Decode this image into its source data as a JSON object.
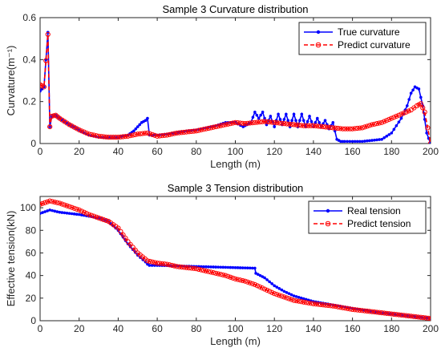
{
  "chart_data": [
    {
      "type": "line",
      "title": "Sample 3 Curvature distribution",
      "xlabel": "Length (m)",
      "ylabel": "Curvature(m⁻¹)",
      "xlim": [
        0,
        200
      ],
      "ylim": [
        0,
        0.6
      ],
      "xticks": [
        "0",
        "20",
        "40",
        "60",
        "80",
        "100",
        "120",
        "140",
        "160",
        "180",
        "200"
      ],
      "yticks": [
        "0",
        "0.2",
        "0.4",
        "0.6"
      ],
      "legend_position": "top-right",
      "grid": false,
      "series": [
        {
          "name": "True curvature",
          "color": "#0000ff",
          "style": "solid-dot",
          "x": [
            0,
            2,
            4,
            5,
            6,
            8,
            10,
            15,
            20,
            25,
            30,
            35,
            40,
            45,
            48,
            50,
            52,
            54,
            55,
            56,
            60,
            65,
            70,
            75,
            80,
            85,
            90,
            95,
            100,
            104,
            106,
            108,
            110,
            112,
            114,
            116,
            118,
            120,
            122,
            124,
            126,
            128,
            130,
            132,
            134,
            136,
            138,
            140,
            142,
            144,
            146,
            148,
            150,
            152,
            154,
            156,
            160,
            165,
            170,
            175,
            180,
            185,
            188,
            190,
            192,
            194,
            196,
            198,
            200
          ],
          "y": [
            0.25,
            0.27,
            0.53,
            0.08,
            0.13,
            0.135,
            0.12,
            0.09,
            0.065,
            0.04,
            0.03,
            0.03,
            0.03,
            0.04,
            0.06,
            0.08,
            0.1,
            0.11,
            0.12,
            0.04,
            0.04,
            0.045,
            0.05,
            0.06,
            0.065,
            0.075,
            0.085,
            0.1,
            0.1,
            0.08,
            0.09,
            0.1,
            0.15,
            0.12,
            0.15,
            0.09,
            0.13,
            0.08,
            0.14,
            0.09,
            0.14,
            0.08,
            0.14,
            0.08,
            0.14,
            0.08,
            0.13,
            0.08,
            0.12,
            0.08,
            0.11,
            0.07,
            0.1,
            0.02,
            0.01,
            0.01,
            0.01,
            0.01,
            0.015,
            0.02,
            0.05,
            0.12,
            0.18,
            0.24,
            0.27,
            0.26,
            0.18,
            0.05,
            0.0
          ]
        },
        {
          "name": "Predict curvature",
          "color": "#ff0000",
          "style": "dashed-circle",
          "x": [
            0,
            2,
            4,
            5,
            6,
            8,
            10,
            15,
            20,
            25,
            30,
            35,
            40,
            45,
            50,
            55,
            60,
            65,
            70,
            75,
            80,
            85,
            90,
            95,
            100,
            105,
            110,
            115,
            120,
            125,
            130,
            135,
            140,
            145,
            150,
            155,
            160,
            165,
            170,
            175,
            180,
            185,
            190,
            193,
            195,
            197,
            200
          ],
          "y": [
            0.28,
            0.27,
            0.52,
            0.08,
            0.13,
            0.135,
            0.12,
            0.09,
            0.065,
            0.045,
            0.035,
            0.03,
            0.03,
            0.035,
            0.045,
            0.05,
            0.035,
            0.04,
            0.05,
            0.055,
            0.06,
            0.07,
            0.08,
            0.09,
            0.1,
            0.095,
            0.1,
            0.105,
            0.1,
            0.095,
            0.09,
            0.085,
            0.085,
            0.08,
            0.075,
            0.07,
            0.07,
            0.075,
            0.09,
            0.1,
            0.12,
            0.14,
            0.16,
            0.18,
            0.19,
            0.15,
            0.0
          ]
        }
      ]
    },
    {
      "type": "line",
      "title": "Sample 3 Tension distribution",
      "xlabel": "Length (m)",
      "ylabel": "Effective tension(kN)",
      "xlim": [
        0,
        200
      ],
      "ylim": [
        0,
        110
      ],
      "xticks": [
        "0",
        "20",
        "40",
        "60",
        "80",
        "100",
        "120",
        "140",
        "160",
        "180",
        "200"
      ],
      "yticks": [
        "0",
        "20",
        "40",
        "60",
        "80",
        "100"
      ],
      "legend_position": "top-right",
      "grid": false,
      "series": [
        {
          "name": "Real tension",
          "color": "#0000ff",
          "style": "solid-dot",
          "x": [
            0,
            5,
            10,
            20,
            30,
            35,
            40,
            45,
            50,
            54,
            55,
            56,
            60,
            70,
            80,
            90,
            100,
            110,
            110.5,
            115,
            120,
            125,
            130,
            140,
            150,
            160,
            170,
            180,
            190,
            200
          ],
          "y": [
            95,
            98,
            96,
            94,
            91,
            88,
            80,
            68,
            58,
            52,
            50,
            49,
            49,
            48.5,
            48,
            47.5,
            47,
            46.5,
            42,
            38,
            31,
            26,
            22,
            17,
            14,
            11,
            8,
            6,
            4,
            2
          ]
        },
        {
          "name": "Predict tension",
          "color": "#ff0000",
          "style": "dashed-circle",
          "x": [
            0,
            5,
            10,
            15,
            20,
            25,
            30,
            35,
            40,
            45,
            50,
            55,
            60,
            65,
            70,
            75,
            80,
            85,
            90,
            95,
            100,
            105,
            110,
            115,
            120,
            125,
            130,
            140,
            150,
            160,
            170,
            180,
            190,
            195,
            200
          ],
          "y": [
            103,
            106,
            104,
            101,
            98,
            94,
            91,
            88,
            82,
            70,
            60,
            53,
            51,
            50,
            48,
            47,
            46,
            44,
            42,
            40,
            37,
            35,
            32,
            28,
            24,
            21,
            18,
            15,
            13,
            10,
            8,
            6,
            4,
            3,
            2
          ]
        }
      ]
    }
  ]
}
